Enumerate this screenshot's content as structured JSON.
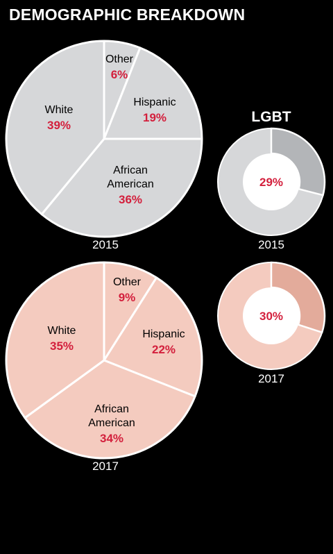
{
  "title": "DEMOGRAPHIC BREAKDOWN",
  "colors": {
    "background": "#000000",
    "text": "#ffffff",
    "accent": "#d31f3c",
    "slice_stroke": "#ffffff",
    "pie_2015": "#d6d7d9",
    "pie_2017": "#f4cbbf",
    "donut_2015_highlight": "#b3b5b8",
    "donut_2017_highlight": "#e3ab9b"
  },
  "chart_data": [
    {
      "type": "pie",
      "title": "2015",
      "slices": [
        {
          "label": "Other",
          "value": 6,
          "value_label": "6%"
        },
        {
          "label": "Hispanic",
          "value": 19,
          "value_label": "19%"
        },
        {
          "label": "African American",
          "value": 36,
          "value_label": "36%"
        },
        {
          "label": "White",
          "value": 39,
          "value_label": "39%"
        }
      ]
    },
    {
      "type": "pie",
      "title": "2017",
      "slices": [
        {
          "label": "Other",
          "value": 9,
          "value_label": "9%"
        },
        {
          "label": "Hispanic",
          "value": 22,
          "value_label": "22%"
        },
        {
          "label": "African American",
          "value": 34,
          "value_label": "34%"
        },
        {
          "label": "White",
          "value": 35,
          "value_label": "35%"
        }
      ]
    },
    {
      "type": "donut",
      "group": "LGBT",
      "title": "2015",
      "value": 29,
      "value_label": "29%"
    },
    {
      "type": "donut",
      "group": "LGBT",
      "title": "2017",
      "value": 30,
      "value_label": "30%"
    }
  ],
  "lgbt_heading": "LGBT"
}
